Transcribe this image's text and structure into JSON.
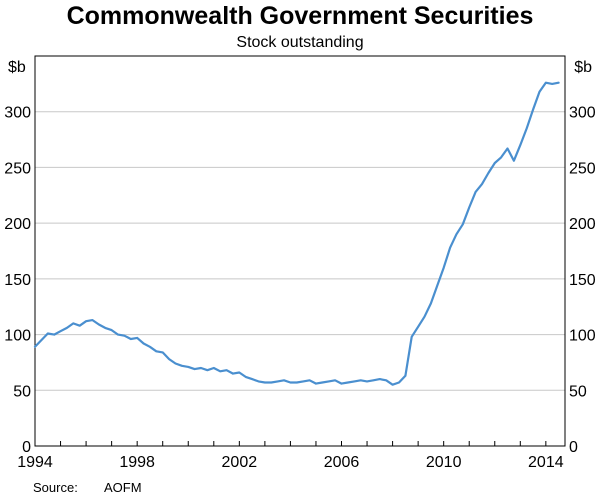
{
  "chart_data": {
    "type": "line",
    "title": "Commonwealth Government Securities",
    "subtitle": "Stock outstanding",
    "unit_left": "$b",
    "unit_right": "$b",
    "source_label": "Source:",
    "source_value": "AOFM",
    "ylim": [
      0,
      350
    ],
    "yticks": [
      0,
      50,
      100,
      150,
      200,
      250,
      300
    ],
    "xlim": [
      1994,
      2014.75
    ],
    "xticks": [
      1994,
      1998,
      2002,
      2006,
      2010,
      2014
    ],
    "grid": true,
    "series": [
      {
        "color": "#4a8fcf",
        "x": [
          1994.0,
          1994.25,
          1994.5,
          1994.75,
          1995.0,
          1995.25,
          1995.5,
          1995.75,
          1996.0,
          1996.25,
          1996.5,
          1996.75,
          1997.0,
          1997.25,
          1997.5,
          1997.75,
          1998.0,
          1998.25,
          1998.5,
          1998.75,
          1999.0,
          1999.25,
          1999.5,
          1999.75,
          2000.0,
          2000.25,
          2000.5,
          2000.75,
          2001.0,
          2001.25,
          2001.5,
          2001.75,
          2002.0,
          2002.25,
          2002.5,
          2002.75,
          2003.0,
          2003.25,
          2003.5,
          2003.75,
          2004.0,
          2004.25,
          2004.5,
          2004.75,
          2005.0,
          2005.25,
          2005.5,
          2005.75,
          2006.0,
          2006.25,
          2006.5,
          2006.75,
          2007.0,
          2007.25,
          2007.5,
          2007.75,
          2008.0,
          2008.25,
          2008.5,
          2008.75,
          2009.0,
          2009.25,
          2009.5,
          2009.75,
          2010.0,
          2010.25,
          2010.5,
          2010.75,
          2011.0,
          2011.25,
          2011.5,
          2011.75,
          2012.0,
          2012.25,
          2012.5,
          2012.75,
          2013.0,
          2013.25,
          2013.5,
          2013.75,
          2014.0,
          2014.25,
          2014.5
        ],
        "values": [
          89,
          95,
          101,
          100,
          103,
          106,
          110,
          108,
          112,
          113,
          109,
          106,
          104,
          100,
          99,
          96,
          97,
          92,
          89,
          85,
          84,
          78,
          74,
          72,
          71,
          69,
          70,
          68,
          70,
          67,
          68,
          65,
          66,
          62,
          60,
          58,
          57,
          57,
          58,
          59,
          57,
          57,
          58,
          59,
          56,
          57,
          58,
          59,
          56,
          57,
          58,
          59,
          58,
          59,
          60,
          59,
          55,
          57,
          63,
          98,
          107,
          116,
          128,
          144,
          160,
          178,
          190,
          199,
          214,
          228,
          235,
          245,
          254,
          259,
          267,
          256,
          270,
          285,
          302,
          318,
          326,
          325,
          326
        ]
      }
    ]
  }
}
